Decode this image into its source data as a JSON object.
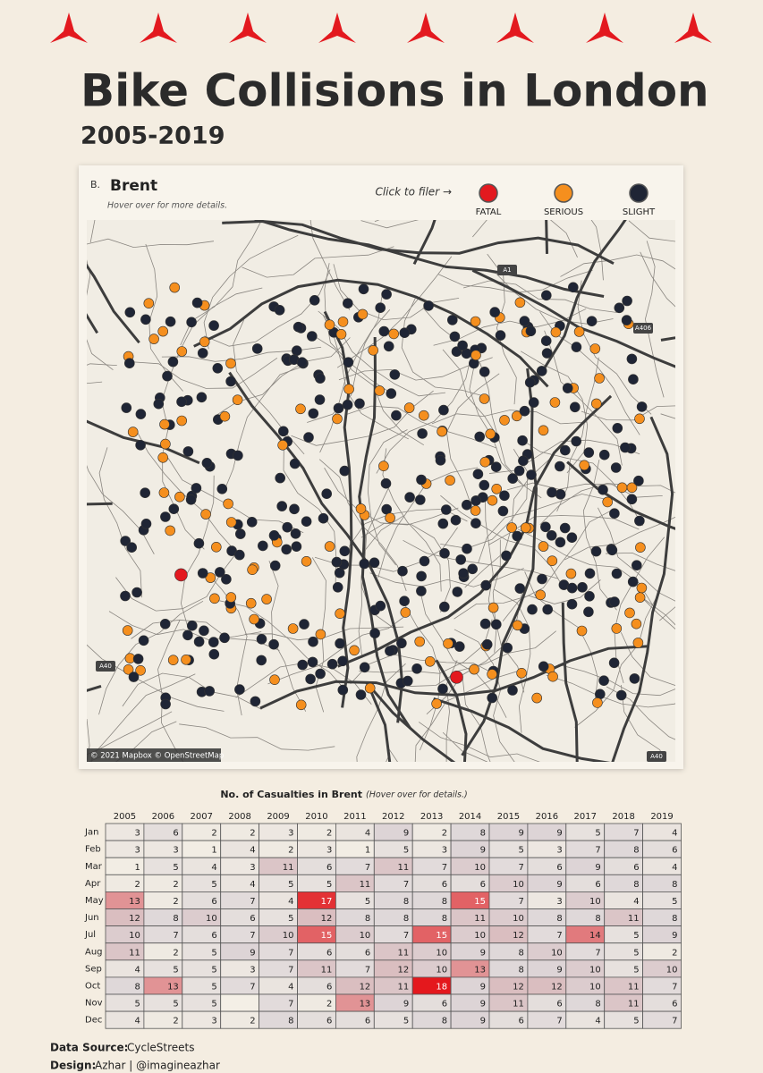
{
  "header": {
    "title": "Bike Collisions in London",
    "subtitle": "2005-2019"
  },
  "map": {
    "panel_label": "B.",
    "area": "Brent",
    "hint": "Hover over for more details.",
    "filter_prompt": "Click to filer →",
    "legend": [
      {
        "name": "FATAL",
        "color": "#e3191f"
      },
      {
        "name": "SERIOUS",
        "color": "#f58f1e"
      },
      {
        "name": "SLIGHT",
        "color": "#1f2535"
      }
    ],
    "road_labels": [
      "A1",
      "A406",
      "A40",
      "A40"
    ],
    "attribution": "© 2021 Mapbox © OpenStreetMap"
  },
  "chart_data": {
    "type": "heatmap",
    "title": "No. of Casualties in Brent",
    "note": "(Hover over for  details.)",
    "x": [
      "2005",
      "2006",
      "2007",
      "2008",
      "2009",
      "2010",
      "2011",
      "2012",
      "2013",
      "2014",
      "2015",
      "2016",
      "2017",
      "2018",
      "2019"
    ],
    "y": [
      "Jan",
      "Feb",
      "Mar",
      "Apr",
      "May",
      "Jun",
      "Jul",
      "Aug",
      "Sep",
      "Oct",
      "Nov",
      "Dec"
    ],
    "values": [
      [
        3,
        6,
        2,
        2,
        3,
        2,
        4,
        9,
        2,
        8,
        9,
        9,
        5,
        7,
        4
      ],
      [
        3,
        3,
        1,
        4,
        2,
        3,
        1,
        5,
        3,
        9,
        5,
        3,
        7,
        8,
        6
      ],
      [
        1,
        5,
        4,
        3,
        11,
        6,
        7,
        11,
        7,
        10,
        7,
        6,
        9,
        6,
        4
      ],
      [
        2,
        2,
        5,
        4,
        5,
        5,
        11,
        7,
        6,
        6,
        10,
        9,
        6,
        8,
        8
      ],
      [
        13,
        2,
        6,
        7,
        4,
        17,
        5,
        8,
        8,
        15,
        7,
        3,
        10,
        4,
        5
      ],
      [
        12,
        8,
        10,
        6,
        5,
        12,
        8,
        8,
        8,
        11,
        10,
        8,
        8,
        11,
        8
      ],
      [
        10,
        7,
        6,
        7,
        10,
        15,
        10,
        7,
        15,
        10,
        12,
        7,
        14,
        5,
        9
      ],
      [
        11,
        2,
        5,
        9,
        7,
        6,
        6,
        11,
        10,
        9,
        8,
        10,
        7,
        5,
        2
      ],
      [
        4,
        5,
        5,
        3,
        7,
        11,
        7,
        12,
        10,
        13,
        8,
        9,
        10,
        5,
        10
      ],
      [
        8,
        13,
        5,
        7,
        4,
        6,
        12,
        11,
        18,
        9,
        12,
        12,
        10,
        11,
        7
      ],
      [
        5,
        5,
        5,
        null,
        7,
        2,
        13,
        9,
        6,
        9,
        11,
        6,
        8,
        11,
        6
      ],
      [
        4,
        2,
        3,
        2,
        8,
        6,
        6,
        5,
        8,
        9,
        6,
        7,
        4,
        5,
        7
      ]
    ]
  },
  "footer": {
    "source_label": "Data Source:",
    "source": "CycleStreets",
    "design_label": "Design:",
    "design": "Azhar | @imagineazhar"
  }
}
